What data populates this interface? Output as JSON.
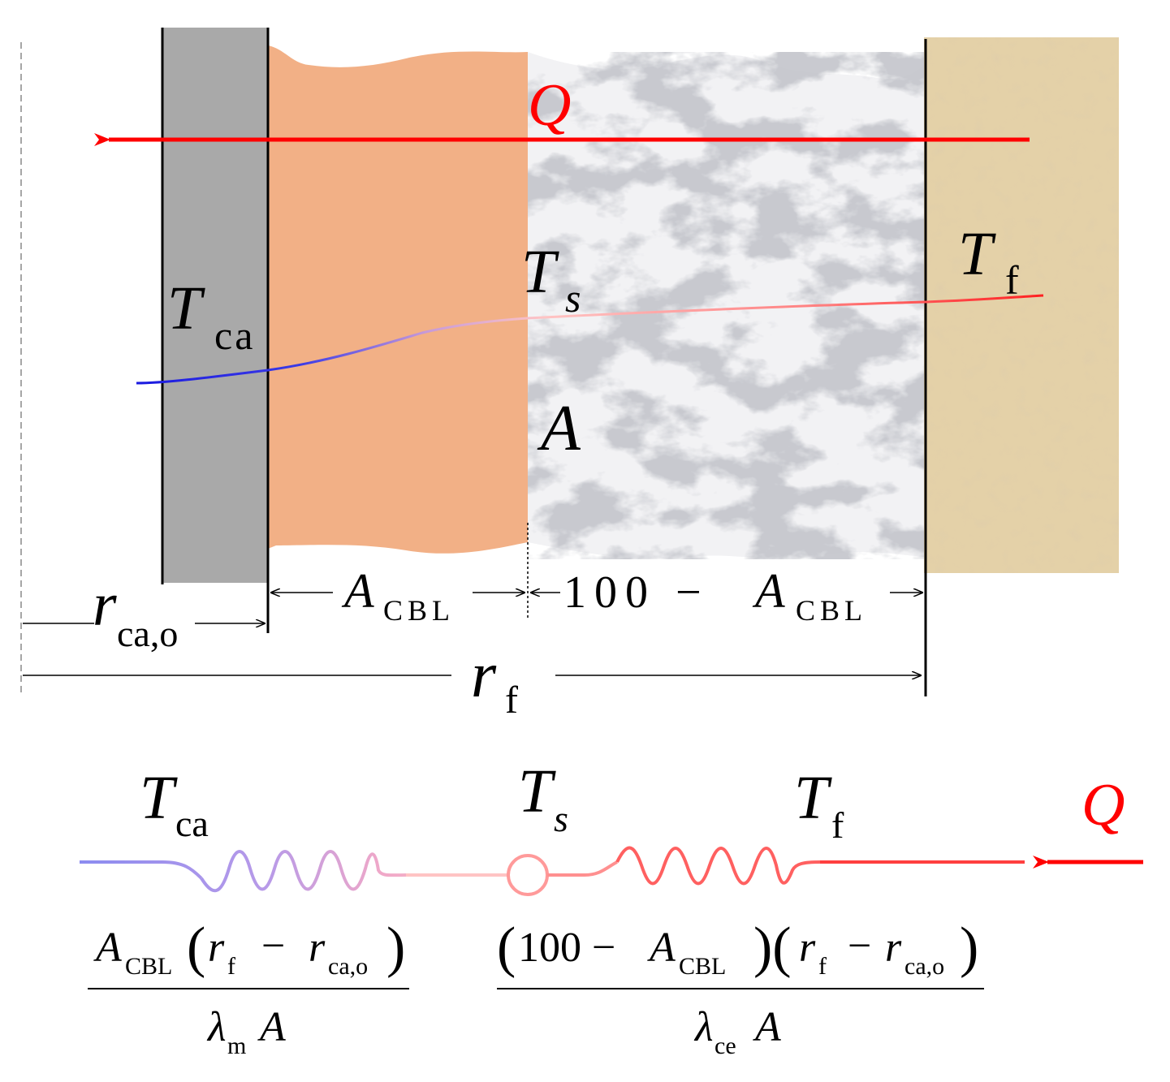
{
  "colors": {
    "casing": "#a9a9a9",
    "cbl": "#f2b086",
    "formation": "#e4d1a8",
    "heat_arrow": "#ff0000",
    "cold": "#2a2ae6",
    "hot": "#ff3030"
  },
  "labels": {
    "q_main": "Q",
    "t_ca": {
      "main": "T",
      "sub": "ca"
    },
    "t_s": {
      "main": "T",
      "sub": "s"
    },
    "t_f": {
      "main": "T",
      "sub": "f"
    },
    "area": "A",
    "a_cbl": {
      "main": "A",
      "sub": "CBL"
    },
    "rest": {
      "prefix": "100 − ",
      "main": "A",
      "sub": "CBL"
    },
    "r_cao": {
      "main": "r",
      "sub": "ca,o"
    },
    "r_f": {
      "main": "r",
      "sub": "f"
    }
  },
  "circuit": {
    "t_ca": {
      "main": "T",
      "sub": "ca"
    },
    "t_s": {
      "main": "T",
      "sub": "s"
    },
    "t_f": {
      "main": "T",
      "sub": "f"
    },
    "q": "Q",
    "r1": {
      "num_a": "A",
      "num_a_sub": "CBL",
      "num_r1": "r",
      "num_r1_sub": "f",
      "minus": "−",
      "num_r2": "r",
      "num_r2_sub": "ca,o",
      "den_lambda": "λ",
      "den_lambda_sub": "m",
      "den_a": "A"
    },
    "r2": {
      "num_100": "100 − ",
      "num_a": "A",
      "num_a_sub": "CBL",
      "num_r1": "r",
      "num_r1_sub": "f",
      "minus": "−",
      "num_r2": "r",
      "num_r2_sub": "ca,o",
      "den_lambda": "λ",
      "den_lambda_sub": "ce",
      "den_a": "A"
    }
  }
}
